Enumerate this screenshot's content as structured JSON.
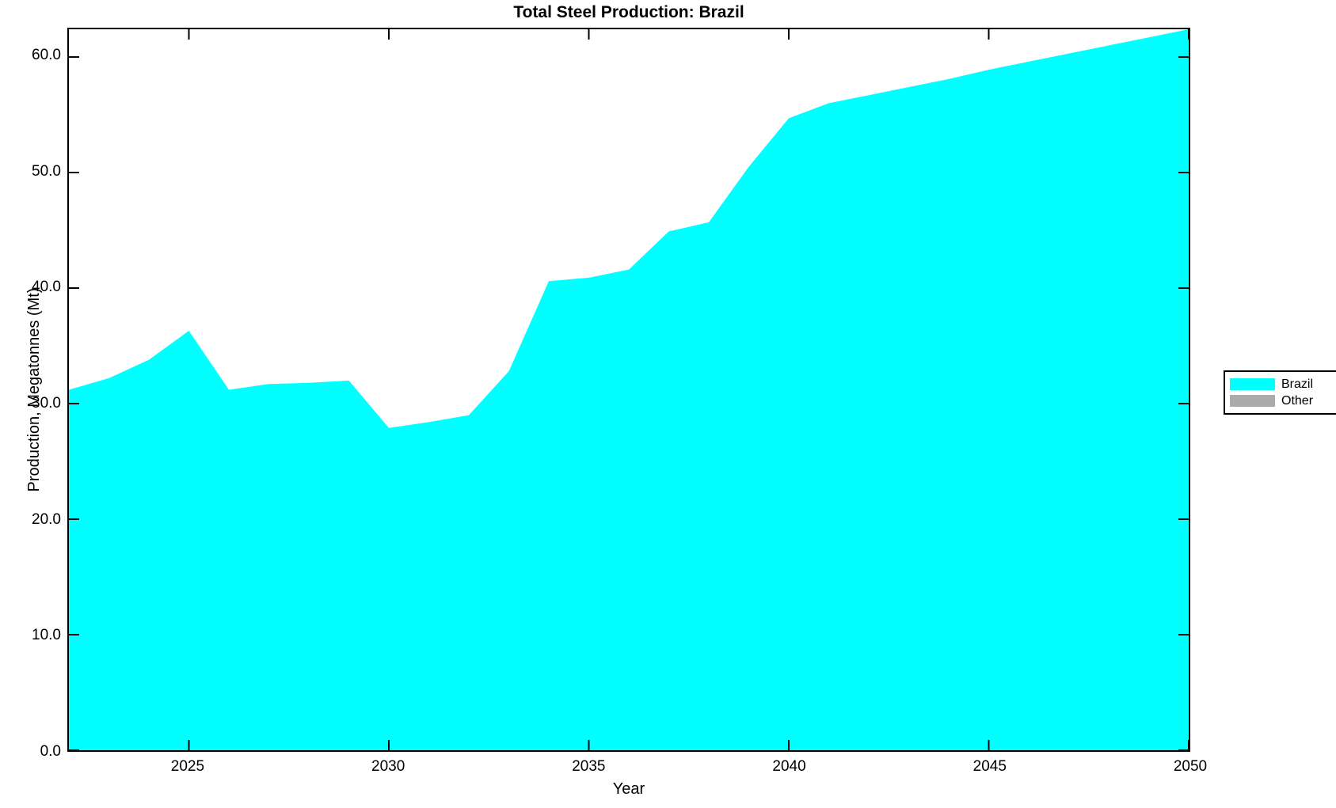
{
  "title": "Total Steel Production: Brazil",
  "xlabel": "Year",
  "ylabel": "Production, Megatonnes (Mt)",
  "colors": {
    "brazil_fill": "#00ffff",
    "other_fill": "#ababab",
    "axis": "#000000",
    "background": "#ffffff"
  },
  "legend": {
    "position": "right-outside",
    "items": [
      {
        "label": "Brazil",
        "color": "#00ffff"
      },
      {
        "label": "Other",
        "color": "#ababab"
      }
    ]
  },
  "chart_data": {
    "type": "area",
    "title": "Total Steel Production: Brazil",
    "xlabel": "Year",
    "ylabel": "Production, Megatonnes (Mt)",
    "x": [
      2022,
      2023,
      2024,
      2025,
      2026,
      2027,
      2028,
      2029,
      2030,
      2031,
      2032,
      2033,
      2034,
      2035,
      2036,
      2037,
      2038,
      2039,
      2040,
      2041,
      2042,
      2043,
      2044,
      2045,
      2046,
      2047,
      2048,
      2049,
      2050
    ],
    "series": [
      {
        "name": "Brazil",
        "color": "#00ffff",
        "values": [
          31.2,
          32.2,
          33.8,
          36.3,
          31.2,
          31.7,
          31.8,
          32.0,
          27.9,
          28.4,
          29.0,
          32.8,
          40.6,
          40.9,
          41.6,
          44.9,
          45.7,
          50.5,
          54.7,
          56.0,
          56.7,
          57.4,
          58.1,
          58.9,
          59.6,
          60.3,
          61.0,
          61.7,
          62.4
        ]
      },
      {
        "name": "Other",
        "color": "#ababab",
        "values": [],
        "note": "shown in legend only; no visible area in plot"
      }
    ],
    "xlim": [
      2022,
      2050
    ],
    "ylim": [
      0,
      62.4
    ],
    "x_ticks": [
      2025,
      2030,
      2035,
      2040,
      2045,
      2050
    ],
    "x_tick_labels": [
      "2025",
      "2030",
      "2035",
      "2040",
      "2045",
      "2050"
    ],
    "y_ticks": [
      0,
      10,
      20,
      30,
      40,
      50,
      60
    ],
    "y_tick_labels": [
      "0.0",
      "10.0",
      "20.0",
      "30.0",
      "40.0",
      "50.0",
      "60.0"
    ],
    "grid": false,
    "tick_direction": "in",
    "box": true
  }
}
